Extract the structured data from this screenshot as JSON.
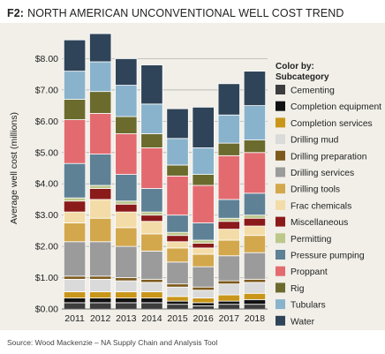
{
  "header": {
    "figure_id": "F2:",
    "title": "NORTH AMERICAN UNCONVENTIONAL WELL COST TREND"
  },
  "source": "Source: Wood Mackenzie – NA Supply Chain and Analysis Tool",
  "chart_data": {
    "type": "bar",
    "stacked": true,
    "title": "NORTH AMERICAN UNCONVENTIONAL WELL COST TREND",
    "xlabel": "",
    "ylabel": "Average well cost (millions)",
    "ylim": [
      0,
      9
    ],
    "yticks": [
      0,
      1,
      2,
      3,
      4,
      5,
      6,
      7,
      8
    ],
    "ytick_labels": [
      "$0.00",
      "$1.00",
      "$2.00",
      "$3.00",
      "$4.00",
      "$5.00",
      "$6.00",
      "$7.00",
      "$8.00"
    ],
    "grid": "horizontal",
    "legend_title": "Color by: Subcategory",
    "legend_placement": "right",
    "categories": [
      "2011",
      "2012",
      "2013",
      "2014",
      "2015",
      "2016",
      "2017",
      "2018"
    ],
    "series": [
      {
        "name": "Cementing",
        "color": "#3d3d3d",
        "values": [
          0.2,
          0.2,
          0.2,
          0.2,
          0.15,
          0.1,
          0.15,
          0.15
        ]
      },
      {
        "name": "Completion equipment",
        "color": "#111111",
        "values": [
          0.15,
          0.15,
          0.15,
          0.15,
          0.1,
          0.1,
          0.1,
          0.15
        ]
      },
      {
        "name": "Completion services",
        "color": "#c9961a",
        "values": [
          0.2,
          0.2,
          0.2,
          0.2,
          0.15,
          0.15,
          0.2,
          0.2
        ]
      },
      {
        "name": "Drilling mud",
        "color": "#dadada",
        "values": [
          0.4,
          0.4,
          0.35,
          0.3,
          0.3,
          0.25,
          0.35,
          0.35
        ]
      },
      {
        "name": "Drilling preparation",
        "color": "#7d5a1c",
        "values": [
          0.1,
          0.1,
          0.1,
          0.1,
          0.1,
          0.1,
          0.1,
          0.1
        ]
      },
      {
        "name": "Drilling services",
        "color": "#9b9b9b",
        "values": [
          1.1,
          1.1,
          1.0,
          0.9,
          0.7,
          0.65,
          0.8,
          0.85
        ]
      },
      {
        "name": "Drilling tools",
        "color": "#d3a84c",
        "values": [
          0.6,
          0.75,
          0.6,
          0.55,
          0.45,
          0.4,
          0.5,
          0.55
        ]
      },
      {
        "name": "Frac chemicals",
        "color": "#f3dca7",
        "values": [
          0.35,
          0.6,
          0.5,
          0.4,
          0.2,
          0.2,
          0.35,
          0.3
        ]
      },
      {
        "name": "Miscellaneous",
        "color": "#8b1a1a",
        "values": [
          0.35,
          0.35,
          0.25,
          0.2,
          0.2,
          0.15,
          0.25,
          0.25
        ]
      },
      {
        "name": "Permitting",
        "color": "#bcc78a",
        "values": [
          0.1,
          0.1,
          0.1,
          0.1,
          0.1,
          0.1,
          0.1,
          0.1
        ]
      },
      {
        "name": "Pressure pumping",
        "color": "#5e8196",
        "values": [
          1.1,
          1.0,
          0.85,
          0.75,
          0.55,
          0.55,
          0.6,
          0.7
        ]
      },
      {
        "name": "Proppant",
        "color": "#e36b70",
        "values": [
          1.4,
          1.3,
          1.3,
          1.3,
          1.25,
          1.2,
          1.4,
          1.3
        ]
      },
      {
        "name": "Rig",
        "color": "#6b6b2e",
        "values": [
          0.65,
          0.7,
          0.55,
          0.45,
          0.35,
          0.35,
          0.4,
          0.4
        ]
      },
      {
        "name": "Tubulars",
        "color": "#89b3cc",
        "values": [
          0.9,
          0.95,
          1.0,
          0.95,
          0.85,
          0.85,
          0.9,
          1.1
        ]
      },
      {
        "name": "Water",
        "color": "#2f4459",
        "values": [
          1.0,
          0.9,
          0.85,
          1.25,
          0.95,
          1.3,
          1.0,
          1.1
        ]
      }
    ]
  }
}
